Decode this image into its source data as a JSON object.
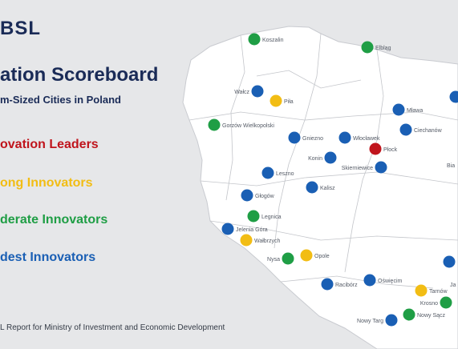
{
  "header": {
    "logo": "BSL",
    "title": "ation Scoreboard",
    "subtitle": "m-Sized Cities in Poland"
  },
  "legend": [
    {
      "label": "ovation Leaders",
      "color": "#c0141c",
      "category": "leader"
    },
    {
      "label": "ong Innovators",
      "color": "#f2bd14",
      "category": "strong"
    },
    {
      "label": "derate Innovators",
      "color": "#1f9e45",
      "category": "moderate"
    },
    {
      "label": "dest Innovators",
      "color": "#1a5fb4",
      "category": "modest"
    }
  ],
  "footer": "L Report for Ministry of Investment and Economic Development",
  "cities": [
    {
      "name": "Koszalin",
      "category": "moderate"
    },
    {
      "name": "Elbląg",
      "category": "moderate"
    },
    {
      "name": "Wałcz",
      "category": "modest"
    },
    {
      "name": "Piła",
      "category": "strong"
    },
    {
      "name": "Mława",
      "category": "modest"
    },
    {
      "name": "Gorzów Wielkopolski",
      "category": "moderate"
    },
    {
      "name": "Gniezno",
      "category": "modest"
    },
    {
      "name": "Włocławek",
      "category": "modest"
    },
    {
      "name": "Ciechanów",
      "category": "modest"
    },
    {
      "name": "Płock",
      "category": "leader"
    },
    {
      "name": "Konin",
      "category": "modest"
    },
    {
      "name": "Skierniewice",
      "category": "modest"
    },
    {
      "name": "Leszno",
      "category": "modest"
    },
    {
      "name": "Kalisz",
      "category": "modest"
    },
    {
      "name": "Głogów",
      "category": "modest"
    },
    {
      "name": "Legnica",
      "category": "moderate"
    },
    {
      "name": "Jelenia Góra",
      "category": "modest"
    },
    {
      "name": "Wałbrzych",
      "category": "strong"
    },
    {
      "name": "Nysa",
      "category": "moderate"
    },
    {
      "name": "Opole",
      "category": "strong"
    },
    {
      "name": "Racibórz",
      "category": "modest"
    },
    {
      "name": "Oświęcim",
      "category": "modest"
    },
    {
      "name": "Tarnów",
      "category": "strong"
    },
    {
      "name": "Krosno",
      "category": "moderate"
    },
    {
      "name": "Nowy Targ",
      "category": "modest"
    },
    {
      "name": "Nowy Sącz",
      "category": "moderate"
    },
    {
      "name": "Bia",
      "category": null
    },
    {
      "name": "Ja",
      "category": null
    }
  ]
}
